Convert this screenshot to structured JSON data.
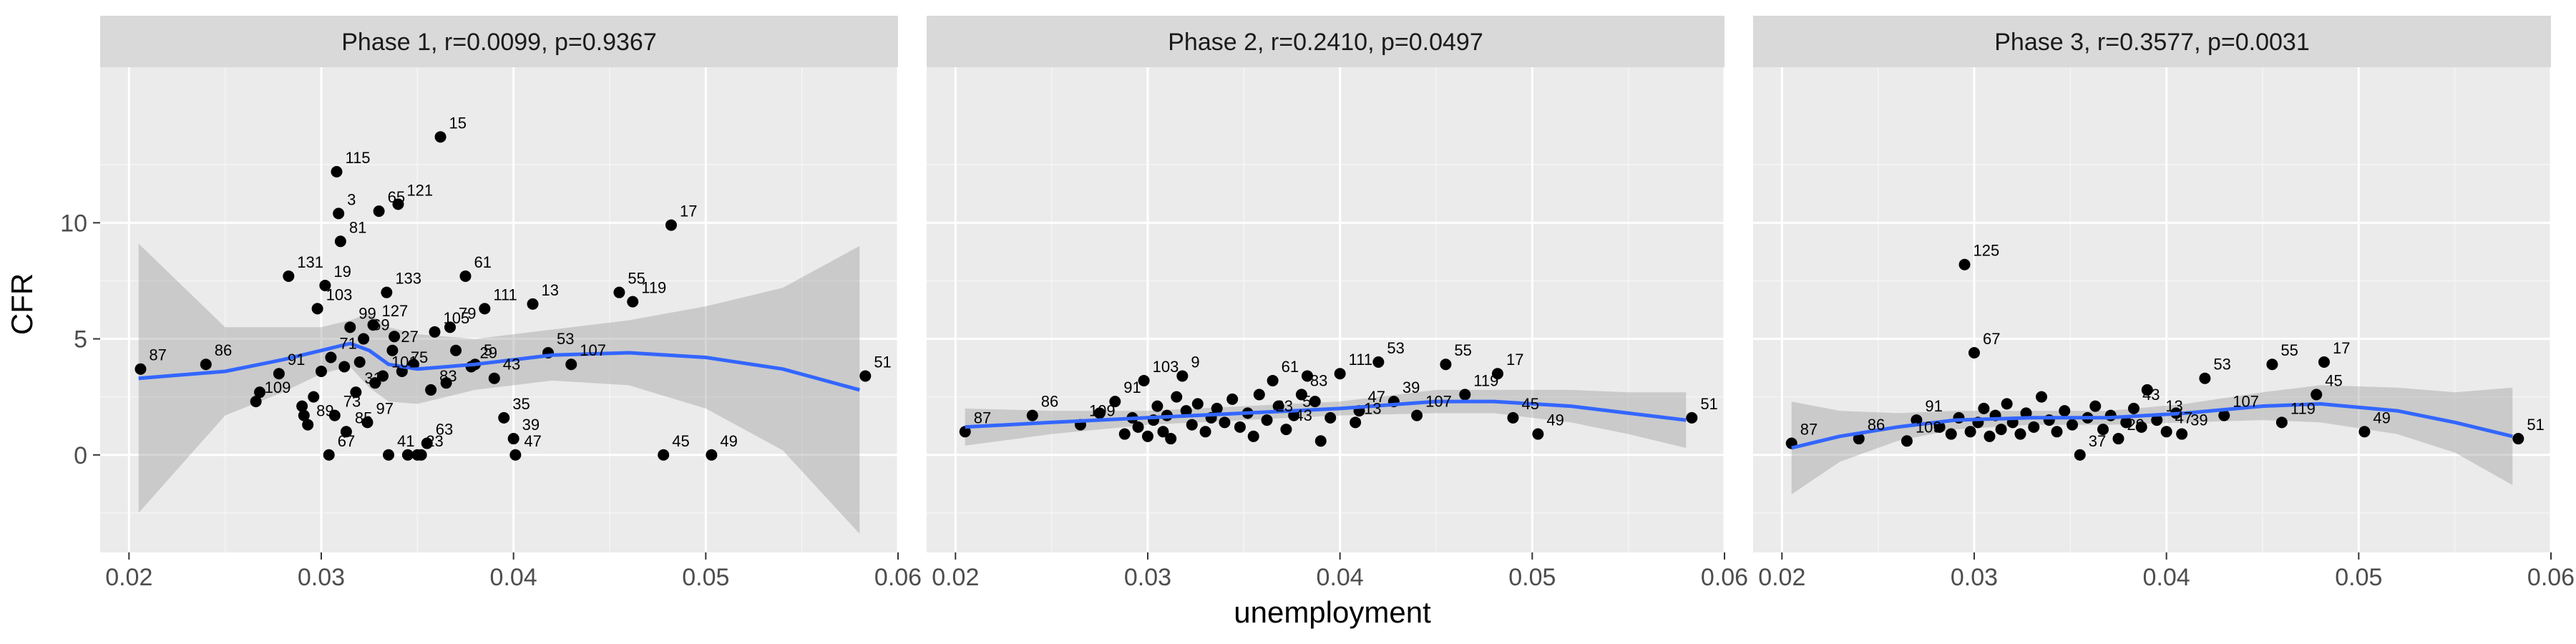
{
  "chart_data": {
    "type": "scatter",
    "xlabel": "unemployment",
    "ylabel": "CFR",
    "xlim": [
      0.0185,
      0.06
    ],
    "ylim": [
      -4.2,
      16.7
    ],
    "x_ticks": [
      0.02,
      0.03,
      0.04,
      0.05,
      0.06
    ],
    "x_tick_labels": [
      "0.02",
      "0.03",
      "0.04",
      "0.05",
      "0.06"
    ],
    "y_ticks": [
      0,
      5,
      10
    ],
    "y_tick_labels": [
      "0",
      "5",
      "10"
    ],
    "grid": true,
    "facets": [
      {
        "title": "Phase 1, r=0.0099, p=0.9367",
        "smooth": {
          "x": [
            0.0205,
            0.025,
            0.028,
            0.03,
            0.0315,
            0.0325,
            0.0335,
            0.035,
            0.038,
            0.042,
            0.046,
            0.05,
            0.054,
            0.058
          ],
          "y": [
            3.3,
            3.6,
            4.1,
            4.5,
            4.8,
            4.5,
            3.9,
            3.7,
            3.9,
            4.3,
            4.4,
            4.2,
            3.7,
            2.8
          ],
          "lo": [
            -2.5,
            1.7,
            2.7,
            3.5,
            3.8,
            2.9,
            2.3,
            2.2,
            2.8,
            3.2,
            3.0,
            2.0,
            0.2,
            -3.4
          ],
          "hi": [
            9.1,
            5.5,
            5.5,
            5.5,
            5.8,
            6.1,
            5.5,
            5.2,
            5.0,
            5.4,
            5.8,
            6.4,
            7.2,
            9.0
          ]
        },
        "points": [
          {
            "x": 0.0206,
            "y": 3.7,
            "label": "87"
          },
          {
            "x": 0.024,
            "y": 3.9,
            "label": "86"
          },
          {
            "x": 0.0266,
            "y": 2.3,
            "label": "109"
          },
          {
            "x": 0.0268,
            "y": 2.7,
            "label": ""
          },
          {
            "x": 0.0278,
            "y": 3.5,
            "label": "91"
          },
          {
            "x": 0.0283,
            "y": 7.7,
            "label": "131"
          },
          {
            "x": 0.029,
            "y": 2.1,
            "label": ""
          },
          {
            "x": 0.0291,
            "y": 1.7,
            "label": ""
          },
          {
            "x": 0.0293,
            "y": 1.3,
            "label": "89"
          },
          {
            "x": 0.0296,
            "y": 2.5,
            "label": ""
          },
          {
            "x": 0.0298,
            "y": 6.3,
            "label": "103"
          },
          {
            "x": 0.03,
            "y": 3.6,
            "label": ""
          },
          {
            "x": 0.0302,
            "y": 7.3,
            "label": "19"
          },
          {
            "x": 0.0304,
            "y": 0.0,
            "label": "67"
          },
          {
            "x": 0.0305,
            "y": 4.2,
            "label": "71"
          },
          {
            "x": 0.0307,
            "y": 1.7,
            "label": "73"
          },
          {
            "x": 0.0308,
            "y": 12.2,
            "label": "115"
          },
          {
            "x": 0.0309,
            "y": 10.4,
            "label": "3"
          },
          {
            "x": 0.031,
            "y": 9.2,
            "label": "81"
          },
          {
            "x": 0.0312,
            "y": 3.8,
            "label": ""
          },
          {
            "x": 0.0313,
            "y": 1.0,
            "label": "85"
          },
          {
            "x": 0.0315,
            "y": 5.5,
            "label": "99"
          },
          {
            "x": 0.0318,
            "y": 2.7,
            "label": "31"
          },
          {
            "x": 0.032,
            "y": 4.0,
            "label": ""
          },
          {
            "x": 0.0322,
            "y": 5.0,
            "label": "69"
          },
          {
            "x": 0.0324,
            "y": 1.4,
            "label": "97"
          },
          {
            "x": 0.0327,
            "y": 5.6,
            "label": "127"
          },
          {
            "x": 0.0328,
            "y": 3.1,
            "label": ""
          },
          {
            "x": 0.033,
            "y": 10.5,
            "label": "65"
          },
          {
            "x": 0.0332,
            "y": 3.4,
            "label": "101"
          },
          {
            "x": 0.0334,
            "y": 7.0,
            "label": "133"
          },
          {
            "x": 0.0335,
            "y": 0.0,
            "label": "41"
          },
          {
            "x": 0.0337,
            "y": 4.5,
            "label": "27"
          },
          {
            "x": 0.0338,
            "y": 5.1,
            "label": ""
          },
          {
            "x": 0.034,
            "y": 10.8,
            "label": "121"
          },
          {
            "x": 0.0342,
            "y": 3.6,
            "label": "75"
          },
          {
            "x": 0.0345,
            "y": 0.0,
            "label": ""
          },
          {
            "x": 0.0348,
            "y": 3.9,
            "label": ""
          },
          {
            "x": 0.035,
            "y": 0.0,
            "label": "23"
          },
          {
            "x": 0.0352,
            "y": 0.0,
            "label": ""
          },
          {
            "x": 0.0355,
            "y": 0.5,
            "label": "63"
          },
          {
            "x": 0.0357,
            "y": 2.8,
            "label": "83"
          },
          {
            "x": 0.0359,
            "y": 5.3,
            "label": "105"
          },
          {
            "x": 0.0362,
            "y": 13.7,
            "label": "15"
          },
          {
            "x": 0.0365,
            "y": 3.1,
            "label": ""
          },
          {
            "x": 0.0367,
            "y": 5.5,
            "label": "79"
          },
          {
            "x": 0.037,
            "y": 4.5,
            "label": ""
          },
          {
            "x": 0.0375,
            "y": 7.7,
            "label": "61"
          },
          {
            "x": 0.0378,
            "y": 3.8,
            "label": "29"
          },
          {
            "x": 0.038,
            "y": 3.9,
            "label": "5"
          },
          {
            "x": 0.0385,
            "y": 6.3,
            "label": "111"
          },
          {
            "x": 0.039,
            "y": 3.3,
            "label": "43"
          },
          {
            "x": 0.0395,
            "y": 1.6,
            "label": "35"
          },
          {
            "x": 0.04,
            "y": 0.7,
            "label": "39"
          },
          {
            "x": 0.0401,
            "y": 0.0,
            "label": "47"
          },
          {
            "x": 0.041,
            "y": 6.5,
            "label": "13"
          },
          {
            "x": 0.0418,
            "y": 4.4,
            "label": "53"
          },
          {
            "x": 0.043,
            "y": 3.9,
            "label": "107"
          },
          {
            "x": 0.0455,
            "y": 7.0,
            "label": "55"
          },
          {
            "x": 0.0462,
            "y": 6.6,
            "label": "119"
          },
          {
            "x": 0.0478,
            "y": 0.0,
            "label": "45"
          },
          {
            "x": 0.0482,
            "y": 9.9,
            "label": "17"
          },
          {
            "x": 0.0503,
            "y": 0.0,
            "label": "49"
          },
          {
            "x": 0.0583,
            "y": 3.4,
            "label": "51"
          }
        ]
      },
      {
        "title": "Phase 2, r=0.2410, p=0.0497",
        "smooth": {
          "x": [
            0.0205,
            0.025,
            0.03,
            0.035,
            0.04,
            0.045,
            0.048,
            0.052,
            0.055,
            0.058
          ],
          "y": [
            1.2,
            1.4,
            1.6,
            1.8,
            2.0,
            2.3,
            2.3,
            2.1,
            1.8,
            1.5
          ],
          "lo": [
            0.4,
            0.9,
            1.3,
            1.5,
            1.7,
            1.8,
            1.8,
            1.4,
            0.9,
            0.3
          ],
          "hi": [
            2.0,
            1.9,
            1.9,
            2.1,
            2.3,
            2.8,
            2.8,
            2.8,
            2.7,
            2.7
          ]
        },
        "points": [
          {
            "x": 0.0205,
            "y": 1.0,
            "label": "87"
          },
          {
            "x": 0.024,
            "y": 1.7,
            "label": "86"
          },
          {
            "x": 0.0265,
            "y": 1.3,
            "label": "109"
          },
          {
            "x": 0.0275,
            "y": 1.8,
            "label": ""
          },
          {
            "x": 0.0283,
            "y": 2.3,
            "label": "91"
          },
          {
            "x": 0.0288,
            "y": 0.9,
            "label": ""
          },
          {
            "x": 0.0292,
            "y": 1.6,
            "label": ""
          },
          {
            "x": 0.0295,
            "y": 1.2,
            "label": ""
          },
          {
            "x": 0.0298,
            "y": 3.2,
            "label": "103"
          },
          {
            "x": 0.03,
            "y": 0.8,
            "label": ""
          },
          {
            "x": 0.0303,
            "y": 1.5,
            "label": ""
          },
          {
            "x": 0.0305,
            "y": 2.1,
            "label": ""
          },
          {
            "x": 0.0308,
            "y": 1.0,
            "label": ""
          },
          {
            "x": 0.031,
            "y": 1.7,
            "label": ""
          },
          {
            "x": 0.0312,
            "y": 0.7,
            "label": ""
          },
          {
            "x": 0.0315,
            "y": 2.5,
            "label": ""
          },
          {
            "x": 0.0318,
            "y": 3.4,
            "label": "9"
          },
          {
            "x": 0.032,
            "y": 1.9,
            "label": ""
          },
          {
            "x": 0.0323,
            "y": 1.3,
            "label": ""
          },
          {
            "x": 0.0326,
            "y": 2.2,
            "label": ""
          },
          {
            "x": 0.033,
            "y": 1.0,
            "label": ""
          },
          {
            "x": 0.0333,
            "y": 1.6,
            "label": ""
          },
          {
            "x": 0.0336,
            "y": 2.0,
            "label": ""
          },
          {
            "x": 0.034,
            "y": 1.4,
            "label": ""
          },
          {
            "x": 0.0344,
            "y": 2.4,
            "label": ""
          },
          {
            "x": 0.0348,
            "y": 1.2,
            "label": ""
          },
          {
            "x": 0.0352,
            "y": 1.8,
            "label": ""
          },
          {
            "x": 0.0355,
            "y": 0.8,
            "label": ""
          },
          {
            "x": 0.0358,
            "y": 2.6,
            "label": ""
          },
          {
            "x": 0.0362,
            "y": 1.5,
            "label": "23"
          },
          {
            "x": 0.0365,
            "y": 3.2,
            "label": "61"
          },
          {
            "x": 0.0368,
            "y": 2.1,
            "label": ""
          },
          {
            "x": 0.0372,
            "y": 1.1,
            "label": "43"
          },
          {
            "x": 0.0376,
            "y": 1.7,
            "label": "5"
          },
          {
            "x": 0.038,
            "y": 2.6,
            "label": "83"
          },
          {
            "x": 0.0383,
            "y": 3.4,
            "label": ""
          },
          {
            "x": 0.0387,
            "y": 2.3,
            "label": ""
          },
          {
            "x": 0.039,
            "y": 0.6,
            "label": ""
          },
          {
            "x": 0.0395,
            "y": 1.6,
            "label": ""
          },
          {
            "x": 0.04,
            "y": 3.5,
            "label": "111"
          },
          {
            "x": 0.0408,
            "y": 1.4,
            "label": "13"
          },
          {
            "x": 0.041,
            "y": 1.9,
            "label": "47"
          },
          {
            "x": 0.042,
            "y": 4.0,
            "label": "53"
          },
          {
            "x": 0.0428,
            "y": 2.3,
            "label": "39"
          },
          {
            "x": 0.044,
            "y": 1.7,
            "label": "107"
          },
          {
            "x": 0.0455,
            "y": 3.9,
            "label": "55"
          },
          {
            "x": 0.0465,
            "y": 2.6,
            "label": "119"
          },
          {
            "x": 0.0482,
            "y": 3.5,
            "label": "17"
          },
          {
            "x": 0.049,
            "y": 1.6,
            "label": "45"
          },
          {
            "x": 0.0503,
            "y": 0.9,
            "label": "49"
          },
          {
            "x": 0.0583,
            "y": 1.6,
            "label": "51"
          }
        ]
      },
      {
        "title": "Phase 3, r=0.3577, p=0.0031",
        "smooth": {
          "x": [
            0.0205,
            0.023,
            0.026,
            0.029,
            0.033,
            0.037,
            0.041,
            0.045,
            0.048,
            0.052,
            0.055,
            0.058
          ],
          "y": [
            0.3,
            0.8,
            1.2,
            1.5,
            1.6,
            1.6,
            1.8,
            2.1,
            2.2,
            1.9,
            1.4,
            0.8
          ],
          "lo": [
            -1.7,
            -0.3,
            0.6,
            1.1,
            1.3,
            1.3,
            1.4,
            1.5,
            1.4,
            0.9,
            0.1,
            -1.3
          ],
          "hi": [
            2.3,
            1.9,
            1.8,
            1.9,
            1.9,
            1.9,
            2.2,
            2.7,
            3.0,
            2.9,
            2.7,
            2.9
          ]
        },
        "points": [
          {
            "x": 0.0205,
            "y": 0.5,
            "label": "87"
          },
          {
            "x": 0.024,
            "y": 0.7,
            "label": "86"
          },
          {
            "x": 0.0265,
            "y": 0.6,
            "label": "109"
          },
          {
            "x": 0.027,
            "y": 1.5,
            "label": "91"
          },
          {
            "x": 0.0282,
            "y": 1.2,
            "label": ""
          },
          {
            "x": 0.0288,
            "y": 0.9,
            "label": ""
          },
          {
            "x": 0.0292,
            "y": 1.6,
            "label": ""
          },
          {
            "x": 0.0295,
            "y": 8.2,
            "label": "125"
          },
          {
            "x": 0.0298,
            "y": 1.0,
            "label": ""
          },
          {
            "x": 0.03,
            "y": 4.4,
            "label": "67"
          },
          {
            "x": 0.0302,
            "y": 1.4,
            "label": ""
          },
          {
            "x": 0.0305,
            "y": 2.0,
            "label": ""
          },
          {
            "x": 0.0308,
            "y": 0.8,
            "label": ""
          },
          {
            "x": 0.0311,
            "y": 1.7,
            "label": ""
          },
          {
            "x": 0.0314,
            "y": 1.1,
            "label": ""
          },
          {
            "x": 0.0317,
            "y": 2.2,
            "label": ""
          },
          {
            "x": 0.032,
            "y": 1.4,
            "label": ""
          },
          {
            "x": 0.0324,
            "y": 0.9,
            "label": ""
          },
          {
            "x": 0.0327,
            "y": 1.8,
            "label": ""
          },
          {
            "x": 0.0331,
            "y": 1.2,
            "label": ""
          },
          {
            "x": 0.0335,
            "y": 2.5,
            "label": ""
          },
          {
            "x": 0.0339,
            "y": 1.5,
            "label": ""
          },
          {
            "x": 0.0343,
            "y": 1.0,
            "label": ""
          },
          {
            "x": 0.0347,
            "y": 1.9,
            "label": ""
          },
          {
            "x": 0.0351,
            "y": 1.3,
            "label": ""
          },
          {
            "x": 0.0355,
            "y": 0.0,
            "label": "37"
          },
          {
            "x": 0.0359,
            "y": 1.6,
            "label": ""
          },
          {
            "x": 0.0363,
            "y": 2.1,
            "label": ""
          },
          {
            "x": 0.0367,
            "y": 1.1,
            "label": ""
          },
          {
            "x": 0.0371,
            "y": 1.7,
            "label": ""
          },
          {
            "x": 0.0375,
            "y": 0.7,
            "label": "29"
          },
          {
            "x": 0.0379,
            "y": 1.4,
            "label": ""
          },
          {
            "x": 0.0383,
            "y": 2.0,
            "label": "43"
          },
          {
            "x": 0.0387,
            "y": 1.2,
            "label": ""
          },
          {
            "x": 0.039,
            "y": 2.8,
            "label": ""
          },
          {
            "x": 0.0395,
            "y": 1.5,
            "label": "13"
          },
          {
            "x": 0.04,
            "y": 1.0,
            "label": "47"
          },
          {
            "x": 0.0405,
            "y": 1.8,
            "label": ""
          },
          {
            "x": 0.0408,
            "y": 0.9,
            "label": "39"
          },
          {
            "x": 0.042,
            "y": 3.3,
            "label": "53"
          },
          {
            "x": 0.043,
            "y": 1.7,
            "label": "107"
          },
          {
            "x": 0.0455,
            "y": 3.9,
            "label": "55"
          },
          {
            "x": 0.046,
            "y": 1.4,
            "label": "119"
          },
          {
            "x": 0.0478,
            "y": 2.6,
            "label": "45"
          },
          {
            "x": 0.0482,
            "y": 4.0,
            "label": "17"
          },
          {
            "x": 0.0503,
            "y": 1.0,
            "label": "49"
          },
          {
            "x": 0.0583,
            "y": 0.7,
            "label": "51"
          }
        ]
      }
    ]
  }
}
